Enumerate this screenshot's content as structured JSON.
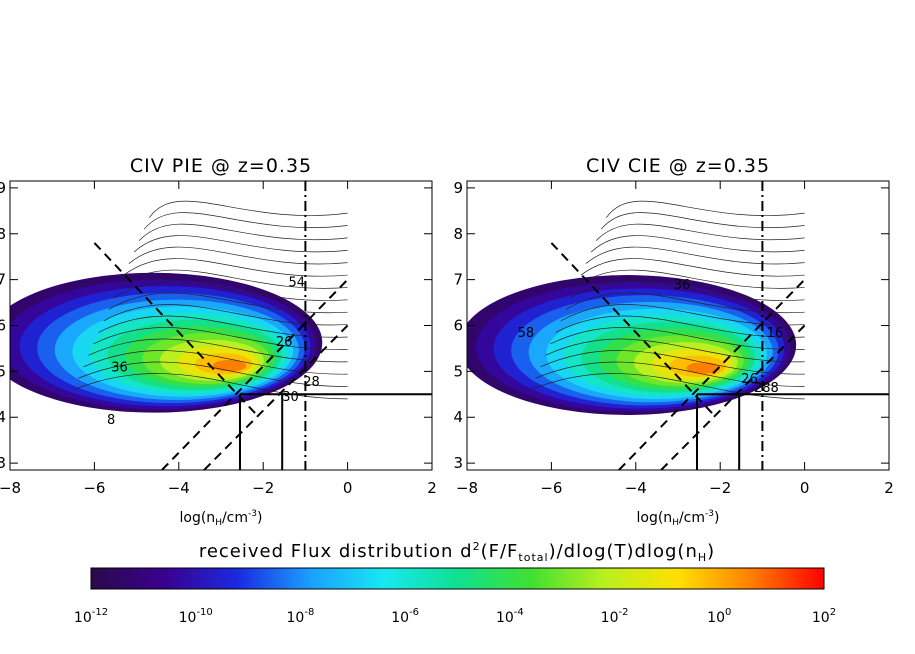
{
  "chart_data": [
    {
      "type": "heatmap",
      "title": "CIV PIE @ z=0.35",
      "xlabel": "log(n_H/cm^-3)",
      "xlabel_main": "log(n",
      "xlabel_sub": "H",
      "xlabel_end": "/cm",
      "xlabel_sup": "-3",
      "xlabel_close": ")",
      "ylabel": "",
      "xlim": [
        -8,
        2
      ],
      "ylim": [
        2.85,
        9.15
      ],
      "xticks": [
        "-8",
        "-6",
        "-4",
        "-2",
        "0",
        "2"
      ],
      "yticks": [
        "3",
        "4",
        "5",
        "6",
        "7",
        "8",
        "9"
      ],
      "contour_labels": [
        {
          "text": "54",
          "x": -1.4,
          "y": 6.85
        },
        {
          "text": "36",
          "x": -5.6,
          "y": 5.0
        },
        {
          "text": "26",
          "x": -1.7,
          "y": 5.55
        },
        {
          "text": "28",
          "x": -1.05,
          "y": 4.68
        },
        {
          "text": "30",
          "x": -1.55,
          "y": 4.35
        },
        {
          "text": "8",
          "x": -5.7,
          "y": 3.85
        }
      ],
      "peak": {
        "x": -2.8,
        "y": 5.1
      },
      "vertical_dashdot_x": -1.0,
      "horizontal_solid_y": 4.5,
      "box_x": [
        -2.55,
        -1.55
      ],
      "dashed_lines": [
        {
          "from": [
            -6.0,
            7.8
          ],
          "to": [
            -2.1,
            4.0
          ]
        },
        {
          "from": [
            -4.4,
            2.85
          ],
          "to": [
            0.0,
            7.0
          ]
        },
        {
          "from": [
            -3.4,
            2.85
          ],
          "to": [
            0.0,
            6.0
          ]
        }
      ]
    },
    {
      "type": "heatmap",
      "title": "CIV CIE @ z=0.35",
      "xlabel": "log(n_H/cm^-3)",
      "xlabel_main": "log(n",
      "xlabel_sub": "H",
      "xlabel_end": "/cm",
      "xlabel_sup": "-3",
      "xlabel_close": ")",
      "ylabel": "",
      "xlim": [
        -8,
        2
      ],
      "ylim": [
        2.85,
        9.15
      ],
      "xticks": [
        "-8",
        "-6",
        "-4",
        "-2",
        "0",
        "2"
      ],
      "yticks": [
        "3",
        "4",
        "5",
        "6",
        "7",
        "8",
        "9"
      ],
      "contour_labels": [
        {
          "text": "36",
          "x": -3.1,
          "y": 6.8
        },
        {
          "text": "58",
          "x": -6.8,
          "y": 5.75
        },
        {
          "text": "16",
          "x": -0.9,
          "y": 5.75
        },
        {
          "text": "26",
          "x": -1.5,
          "y": 4.75
        },
        {
          "text": "288",
          "x": -1.2,
          "y": 4.55
        }
      ],
      "peak": {
        "x": -2.4,
        "y": 5.05
      },
      "vertical_dashdot_x": -1.0,
      "horizontal_solid_y": 4.5,
      "box_x": [
        -2.55,
        -1.55
      ],
      "dashed_lines": [
        {
          "from": [
            -6.0,
            7.8
          ],
          "to": [
            -2.1,
            4.0
          ]
        },
        {
          "from": [
            -4.4,
            2.85
          ],
          "to": [
            0.0,
            7.0
          ]
        },
        {
          "from": [
            -3.4,
            2.85
          ],
          "to": [
            0.0,
            6.0
          ]
        }
      ]
    }
  ],
  "colorbar": {
    "title_main": "received Flux distribution  d",
    "title_sup1": "2",
    "title_mid": "(F/F",
    "title_sub": "total",
    "title_end": ")/dlog(T)dlog(n",
    "title_sub2": "H",
    "title_close": ")",
    "title_full": "received Flux distribution d^2(F/F_total)/dlog(T)dlog(n_H)",
    "tick_base": "10",
    "tick_exponents": [
      "-12",
      "-10",
      "-8",
      "-6",
      "-4",
      "-2",
      "0",
      "2"
    ],
    "colors": [
      "#2a0a4a",
      "#3a0090",
      "#1a2ae0",
      "#1aa0ff",
      "#18e8f0",
      "#10e090",
      "#40e030",
      "#b8f020",
      "#ffe000",
      "#ff8000",
      "#ff0000"
    ]
  }
}
